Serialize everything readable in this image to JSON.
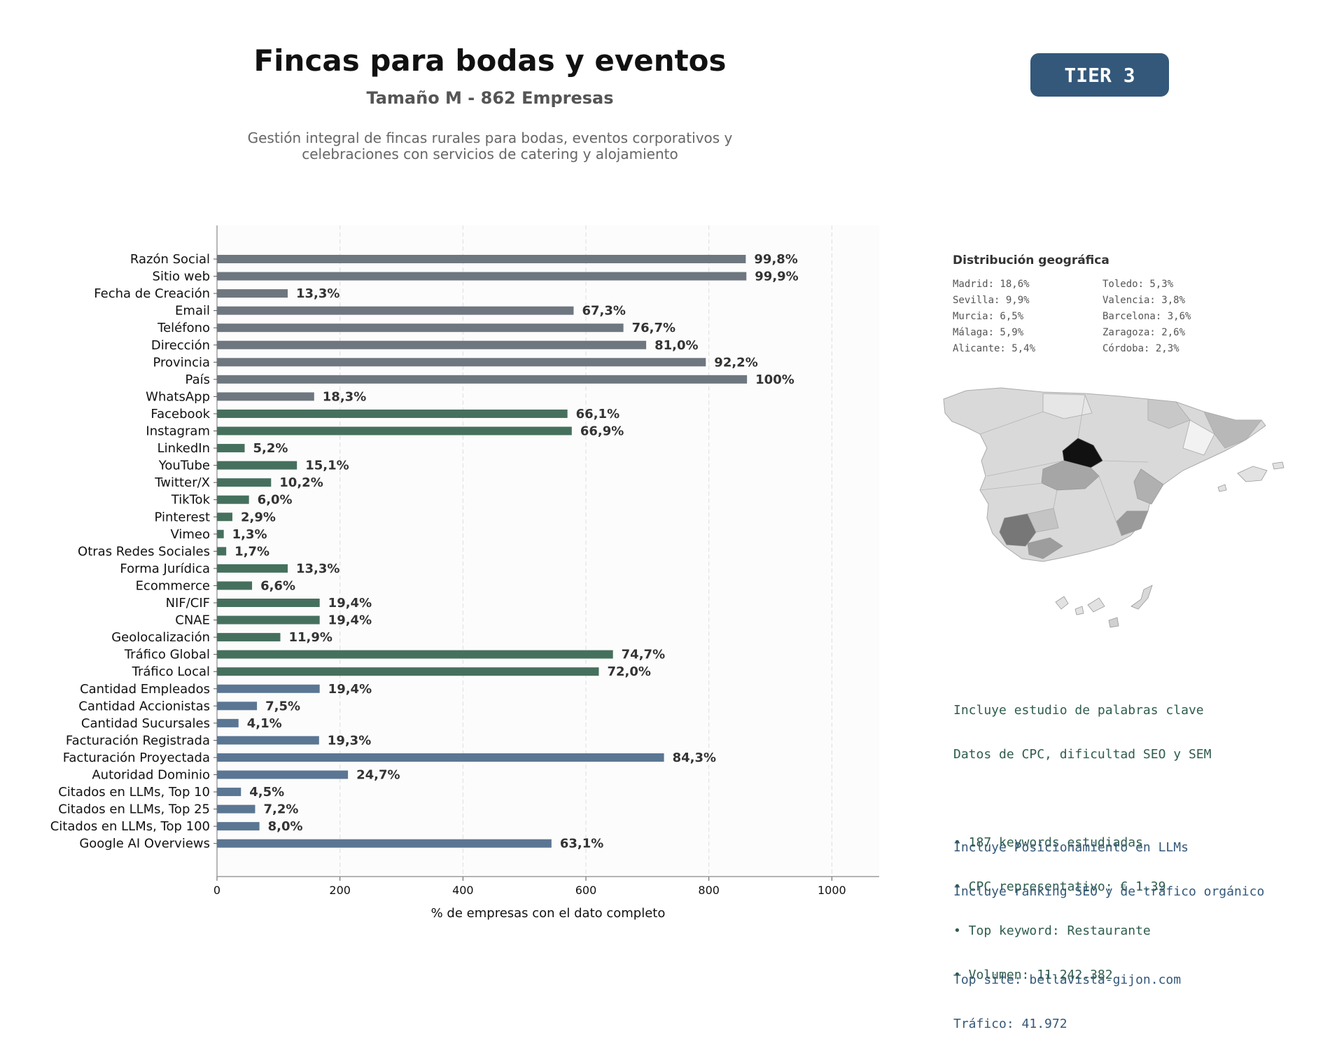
{
  "header": {
    "title": "Fincas para bodas y eventos",
    "subtitle": "Tamaño M - 862 Empresas",
    "description_line1": "Gestión integral de fincas rurales para bodas, eventos corporativos y",
    "description_line2": "celebraciones con servicios de catering y alojamiento",
    "tier": "TIER 3"
  },
  "colors": {
    "gray": "#6e7780",
    "green": "#46705e",
    "blue": "#5a7693",
    "text_green": "#2e5d4b",
    "text_blue": "#34587a",
    "tier_bg": "#34587a"
  },
  "chart_data": {
    "type": "bar",
    "orientation": "horizontal",
    "xlabel": "% de empresas con el dato completo",
    "ylabel": "",
    "xlim": [
      0,
      1077
    ],
    "xticks": [
      0,
      200,
      400,
      600,
      800,
      1000
    ],
    "grid": "vertical dashed",
    "categories": [
      "Razón Social",
      "Sitio web",
      "Fecha de Creación",
      "Email",
      "Teléfono",
      "Dirección",
      "Provincia",
      "País",
      "WhatsApp",
      "Facebook",
      "Instagram",
      "LinkedIn",
      "YouTube",
      "Twitter/X",
      "TikTok",
      "Pinterest",
      "Vimeo",
      "Otras Redes Sociales",
      "Forma Jurídica",
      "Ecommerce",
      "NIF/CIF",
      "CNAE",
      "Geolocalización",
      "Tráfico Global",
      "Tráfico Local",
      "Cantidad Empleados",
      "Cantidad Accionistas",
      "Cantidad Sucursales",
      "Facturación Registrada",
      "Facturación Proyectada",
      "Autoridad Dominio",
      "Citados en LLMs, Top 10",
      "Citados en LLMs, Top 25",
      "Citados en LLMs, Top 100",
      "Google AI Overviews"
    ],
    "values": [
      860,
      861,
      115,
      580,
      661,
      698,
      795,
      862,
      158,
      570,
      577,
      45,
      130,
      88,
      52,
      25,
      11,
      15,
      115,
      57,
      167,
      167,
      103,
      644,
      621,
      167,
      65,
      35,
      166,
      727,
      213,
      39,
      62,
      69,
      544
    ],
    "labels": [
      "99,8%",
      "99,9%",
      "13,3%",
      "67,3%",
      "76,7%",
      "81,0%",
      "92,2%",
      "100%",
      "18,3%",
      "66,1%",
      "66,9%",
      "5,2%",
      "15,1%",
      "10,2%",
      "6,0%",
      "2,9%",
      "1,3%",
      "1,7%",
      "13,3%",
      "6,6%",
      "19,4%",
      "19,4%",
      "11,9%",
      "74,7%",
      "72,0%",
      "19,4%",
      "7,5%",
      "4,1%",
      "19,3%",
      "84,3%",
      "24,7%",
      "4,5%",
      "7,2%",
      "8,0%",
      "63,1%"
    ],
    "groups": [
      "gray",
      "gray",
      "gray",
      "gray",
      "gray",
      "gray",
      "gray",
      "gray",
      "gray",
      "green",
      "green",
      "green",
      "green",
      "green",
      "green",
      "green",
      "green",
      "green",
      "green",
      "green",
      "green",
      "green",
      "green",
      "green",
      "green",
      "blue",
      "blue",
      "blue",
      "blue",
      "blue",
      "blue",
      "blue",
      "blue",
      "blue",
      "blue"
    ]
  },
  "geo": {
    "title": "Distribución geográfica",
    "items": [
      "Madrid: 18,6%",
      "Toledo: 5,3%",
      "Sevilla: 9,9%",
      "Valencia: 3,8%",
      "Murcia: 6,5%",
      "Barcelona: 3,6%",
      "Málaga: 5,9%",
      "Zaragoza: 2,6%",
      "Alicante: 5,4%",
      "Córdoba: 2,3%"
    ]
  },
  "keywords": {
    "line1": "Incluye estudio de palabras clave",
    "line2": "Datos de CPC, dificultad SEO y SEM",
    "bullet1": "• 187 keywords estudiadas",
    "bullet2": "• CPC representativo: € 1.39",
    "bullet3": "• Top keyword: Restaurante",
    "bullet4": "• Volumen: 11.242.382"
  },
  "llm": {
    "line1": "Incluye Posicionamiento en LLMs",
    "line2": "Incluye ranking SEO y de tráfico orgánico",
    "line3": "Top site: bellavista-gijon.com",
    "line4": "Tráfico: 41.972"
  }
}
